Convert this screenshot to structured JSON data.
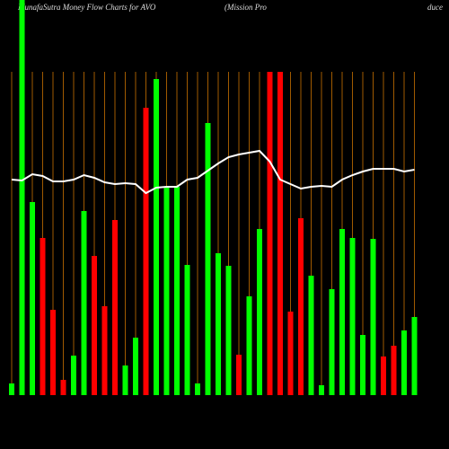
{
  "chart_data": {
    "type": "bar",
    "title": "MunafaSutra  Money Flow  Charts for AVO",
    "subtitle": "(Mission  Pro",
    "subtitle_tail": "duce",
    "categories": [
      null,
      null,
      null,
      null,
      null,
      null,
      null,
      null,
      null,
      null,
      null,
      null,
      null,
      null,
      null,
      null,
      null,
      null,
      null,
      null,
      null,
      null,
      null,
      null,
      null,
      null,
      null,
      null,
      null,
      null,
      null,
      null,
      null,
      null,
      null,
      null,
      null,
      null,
      null,
      null
    ],
    "values": [
      13,
      440,
      215,
      175,
      95,
      17,
      44,
      205,
      155,
      99,
      195,
      33,
      64,
      320,
      352,
      232,
      232,
      145,
      13,
      303,
      158,
      144,
      45,
      110,
      185,
      360,
      360,
      93,
      197,
      133,
      11,
      118,
      185,
      175,
      67,
      174,
      43,
      55,
      72,
      87
    ],
    "colors": [
      "#00ff00",
      "#00ff00",
      "#00ff00",
      "#ff0000",
      "#ff0000",
      "#ff0000",
      "#00ff00",
      "#00ff00",
      "#ff0000",
      "#ff0000",
      "#ff0000",
      "#00ff00",
      "#00ff00",
      "#ff0000",
      "#00ff00",
      "#00ff00",
      "#00ff00",
      "#00ff00",
      "#00ff00",
      "#00ff00",
      "#00ff00",
      "#00ff00",
      "#ff0000",
      "#00ff00",
      "#00ff00",
      "#ff0000",
      "#ff0000",
      "#ff0000",
      "#ff0000",
      "#00ff00",
      "#00ff00",
      "#00ff00",
      "#00ff00",
      "#00ff00",
      "#00ff00",
      "#00ff00",
      "#ff0000",
      "#ff0000",
      "#00ff00",
      "#00ff00"
    ],
    "line": {
      "color": "#ffffff",
      "values": [
        240,
        239,
        246,
        244,
        238,
        238,
        240,
        245,
        242,
        237,
        235,
        236,
        235,
        225,
        231,
        232,
        232,
        240,
        242,
        250,
        258,
        265,
        268,
        270,
        272,
        260,
        240,
        235,
        230,
        232,
        233,
        232,
        240,
        245,
        249,
        252,
        252,
        252,
        249,
        251
      ]
    },
    "ylim": [
      0,
      440
    ],
    "grid_color": "#a05a00",
    "background": "#000000"
  }
}
